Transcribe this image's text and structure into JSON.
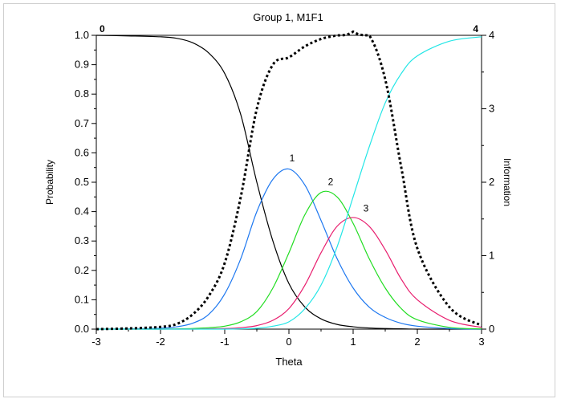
{
  "chart_data": {
    "type": "line",
    "title": "Group 1, M1F1",
    "xlabel": "Theta",
    "ylabel": "Probability",
    "y2label": "Information",
    "xlim": [
      -3,
      3
    ],
    "ylim": [
      0,
      1
    ],
    "y2lim": [
      0,
      4
    ],
    "x_ticks": [
      "-3",
      "-2",
      "-1",
      "0",
      "1",
      "2",
      "3"
    ],
    "y_ticks": [
      "0.0",
      "0.1",
      "0.2",
      "0.3",
      "0.4",
      "0.5",
      "0.6",
      "0.7",
      "0.8",
      "0.9",
      "1.0"
    ],
    "y2_ticks": [
      "0",
      "1",
      "2",
      "3",
      "4"
    ],
    "grid": false,
    "x": [
      -3.0,
      -2.5,
      -2.0,
      -1.75,
      -1.5,
      -1.25,
      -1.0,
      -0.75,
      -0.5,
      -0.25,
      0.0,
      0.25,
      0.5,
      0.75,
      1.0,
      1.25,
      1.5,
      1.75,
      2.0,
      2.5,
      3.0
    ],
    "series": [
      {
        "name": "0",
        "color": "#000000",
        "dash": false,
        "axis": "left",
        "values": [
          1.0,
          0.998,
          0.995,
          0.99,
          0.975,
          0.94,
          0.87,
          0.73,
          0.5,
          0.3,
          0.155,
          0.075,
          0.035,
          0.016,
          0.008,
          0.004,
          0.002,
          0.001,
          0.0,
          0.0,
          0.0
        ]
      },
      {
        "name": "1",
        "color": "#1e78f0",
        "dash": false,
        "axis": "left",
        "values": [
          0.0,
          0.001,
          0.003,
          0.008,
          0.02,
          0.05,
          0.12,
          0.24,
          0.4,
          0.51,
          0.545,
          0.49,
          0.37,
          0.24,
          0.14,
          0.075,
          0.04,
          0.02,
          0.01,
          0.002,
          0.0
        ]
      },
      {
        "name": "2",
        "color": "#22dd22",
        "dash": false,
        "axis": "left",
        "values": [
          0.0,
          0.0,
          0.0,
          0.001,
          0.002,
          0.005,
          0.01,
          0.025,
          0.06,
          0.14,
          0.26,
          0.39,
          0.465,
          0.45,
          0.36,
          0.24,
          0.14,
          0.07,
          0.032,
          0.006,
          0.001
        ]
      },
      {
        "name": "3",
        "color": "#e81e6e",
        "dash": false,
        "axis": "left",
        "values": [
          0.0,
          0.0,
          0.0,
          0.0,
          0.0,
          0.001,
          0.002,
          0.005,
          0.012,
          0.03,
          0.07,
          0.15,
          0.26,
          0.35,
          0.38,
          0.35,
          0.27,
          0.17,
          0.1,
          0.03,
          0.006
        ]
      },
      {
        "name": "4",
        "color": "#22e6e6",
        "dash": false,
        "axis": "left",
        "values": [
          0.0,
          0.0,
          0.0,
          0.0,
          0.0,
          0.0,
          0.0,
          0.001,
          0.003,
          0.01,
          0.025,
          0.07,
          0.15,
          0.28,
          0.45,
          0.62,
          0.77,
          0.87,
          0.93,
          0.98,
          0.995
        ]
      },
      {
        "name": "Information",
        "color": "#000000",
        "dash": true,
        "axis": "right",
        "values": [
          0.0,
          0.01,
          0.03,
          0.07,
          0.2,
          0.45,
          0.9,
          1.8,
          3.0,
          3.6,
          3.7,
          3.85,
          3.95,
          4.0,
          4.05,
          4.0,
          3.4,
          2.2,
          1.1,
          0.3,
          0.05
        ]
      }
    ],
    "curve_labels": [
      {
        "text": "0",
        "x": -2.95,
        "y": 1.0
      },
      {
        "text": "1",
        "x": 0.05,
        "y": 0.56
      },
      {
        "text": "2",
        "x": 0.65,
        "y": 0.48
      },
      {
        "text": "3",
        "x": 1.2,
        "y": 0.39
      },
      {
        "text": "4",
        "x": 2.95,
        "y": 1.0
      }
    ]
  }
}
